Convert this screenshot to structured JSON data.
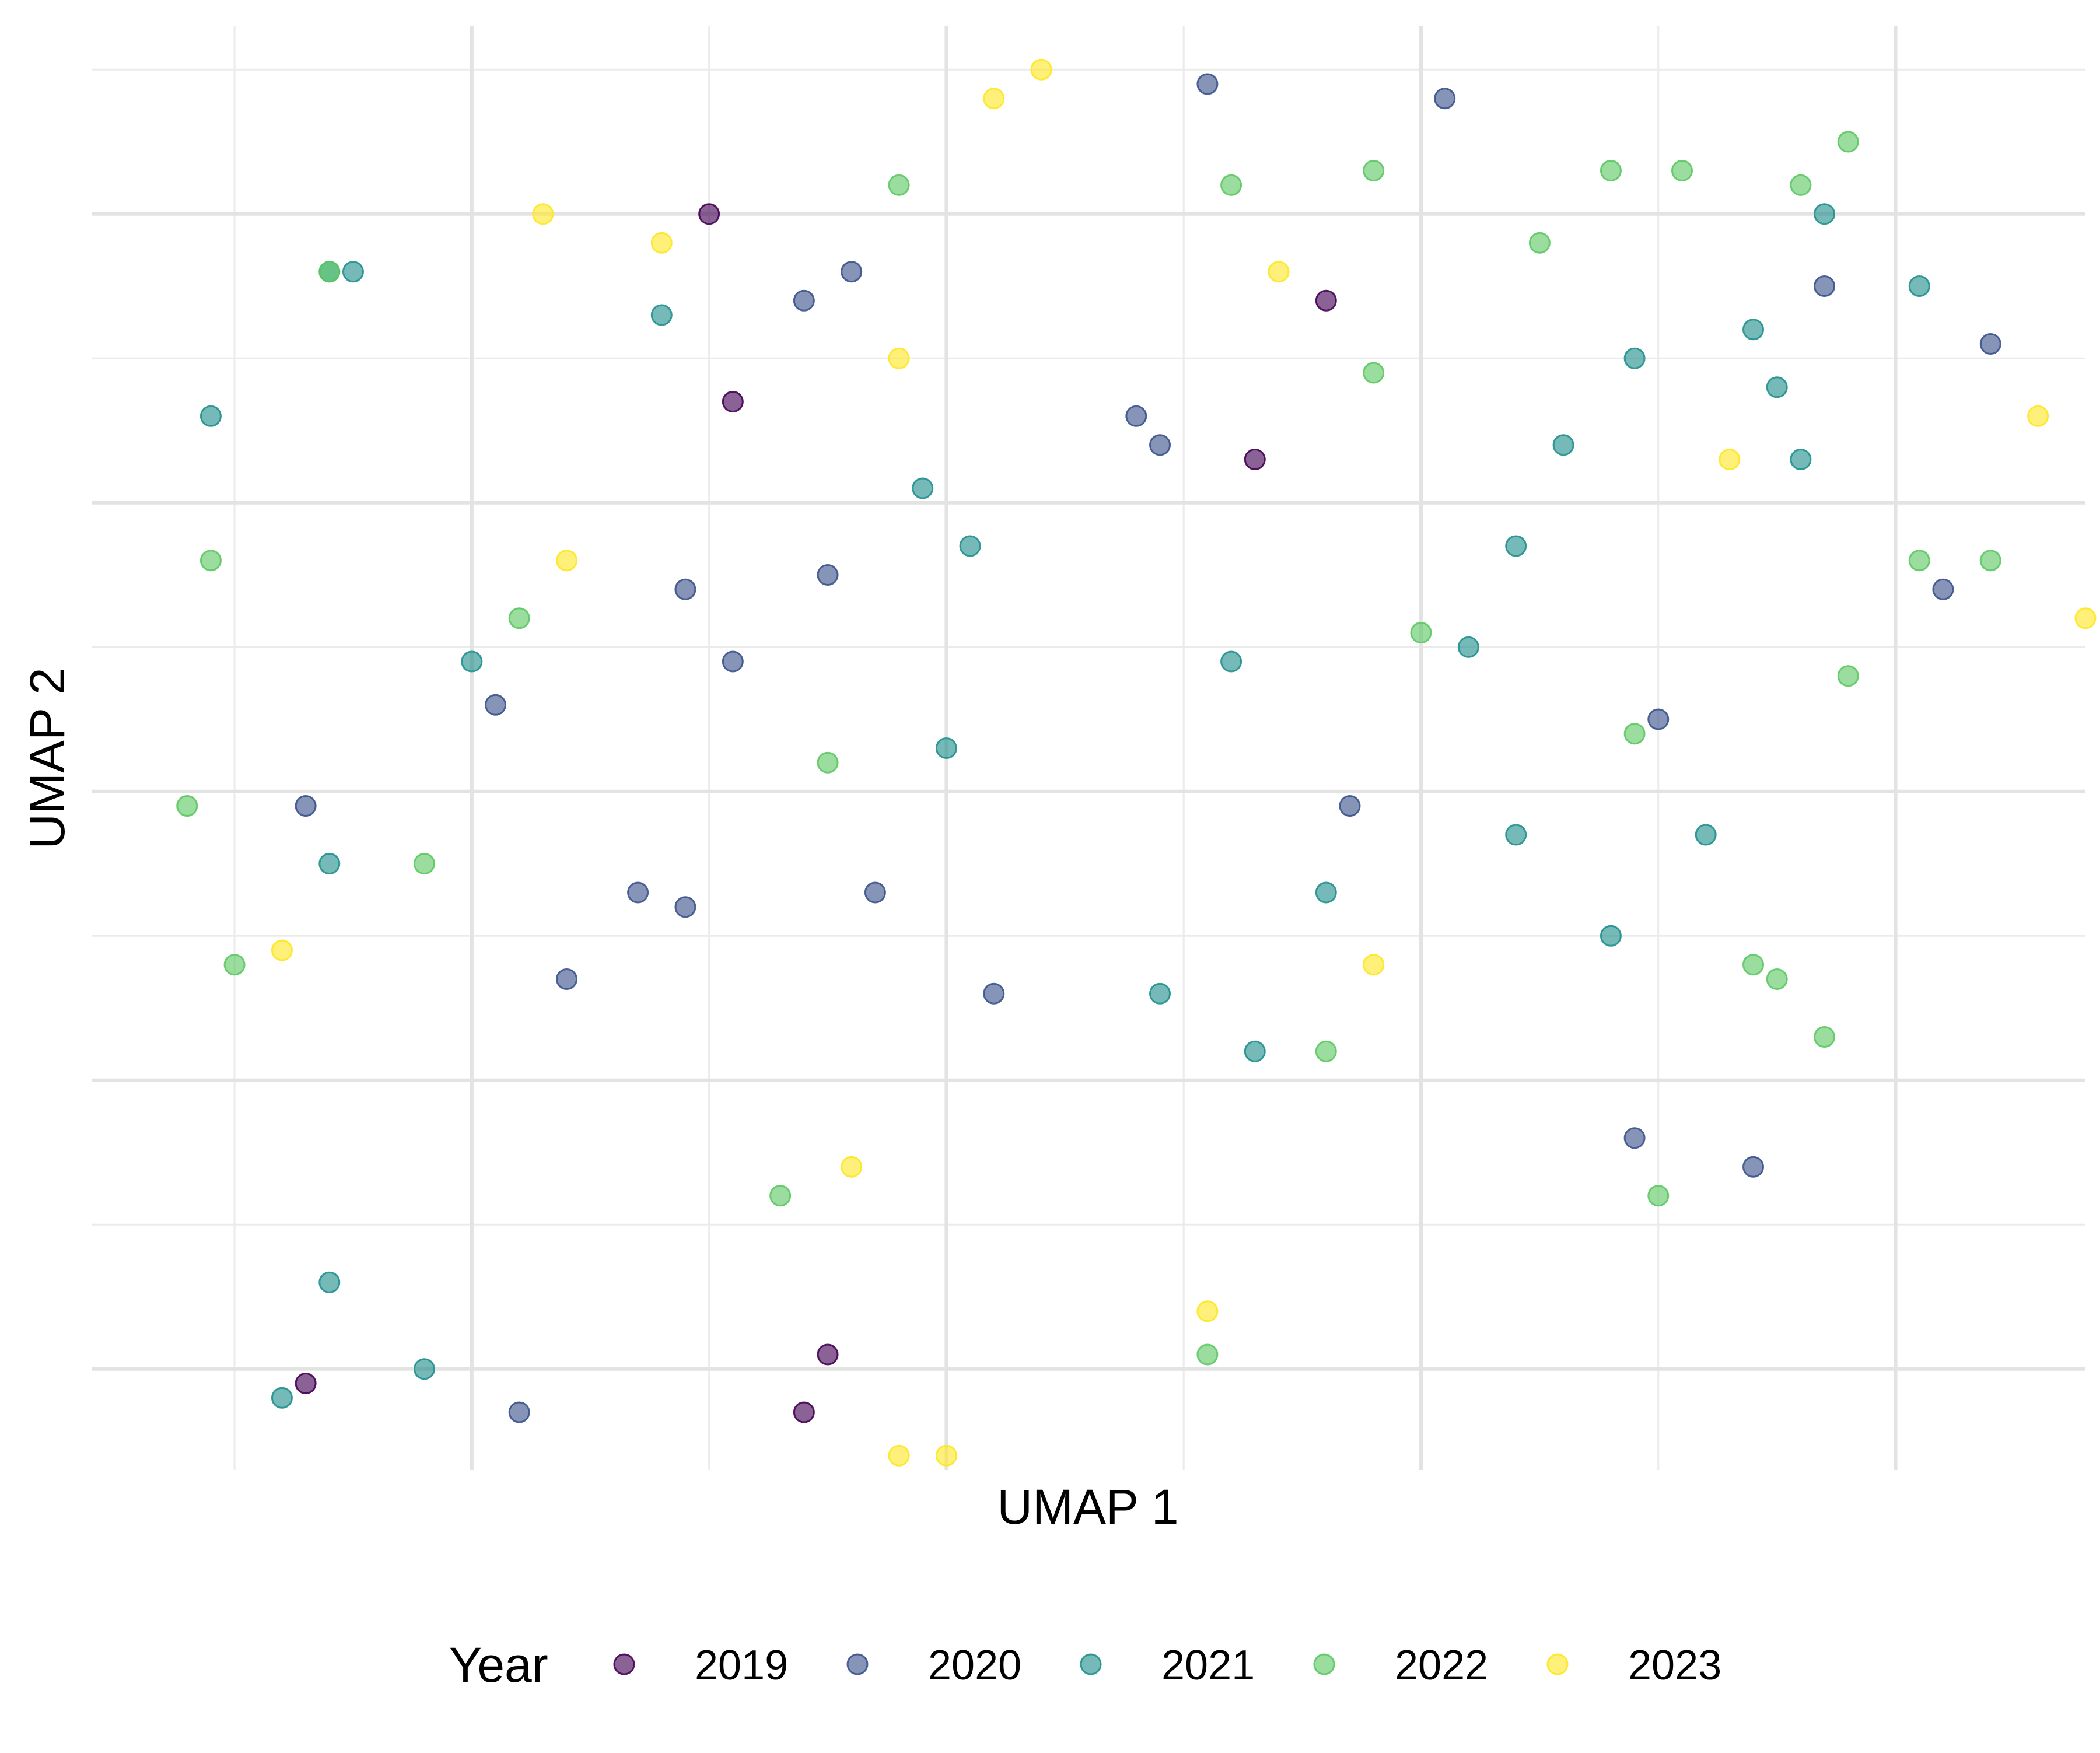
{
  "chart_data": {
    "type": "scatter",
    "title": "",
    "xlabel": "UMAP 1",
    "ylabel": "UMAP 2",
    "xlim": [
      -4.6,
      3.8
    ],
    "ylim": [
      -4.7,
      5.3
    ],
    "grid": true,
    "x_tick_labels_shown": false,
    "y_tick_labels_shown": false,
    "legend": {
      "title": "Year",
      "placement": "bottom"
    },
    "series": [
      {
        "name": "2019",
        "color": "#440154",
        "points": [
          [
            -2.0,
            4.0
          ],
          [
            0.6,
            3.4
          ],
          [
            -1.9,
            2.7
          ],
          [
            0.3,
            2.3
          ],
          [
            -1.5,
            -3.9
          ],
          [
            -3.7,
            -4.1
          ],
          [
            -1.6,
            -4.3
          ]
        ]
      },
      {
        "name": "2020",
        "color": "#3B528B",
        "points": [
          [
            0.1,
            4.9
          ],
          [
            1.1,
            4.8
          ],
          [
            -1.4,
            3.6
          ],
          [
            -1.6,
            3.4
          ],
          [
            2.7,
            3.5
          ],
          [
            3.4,
            3.1
          ],
          [
            -0.2,
            2.6
          ],
          [
            -0.1,
            2.4
          ],
          [
            3.2,
            1.4
          ],
          [
            -1.5,
            1.5
          ],
          [
            -2.1,
            1.4
          ],
          [
            -1.9,
            0.9
          ],
          [
            -2.9,
            0.6
          ],
          [
            2.0,
            0.5
          ],
          [
            -3.7,
            -0.1
          ],
          [
            0.7,
            -0.1
          ],
          [
            -1.3,
            -0.7
          ],
          [
            -2.1,
            -0.8
          ],
          [
            -2.3,
            -0.7
          ],
          [
            -2.6,
            -1.3
          ],
          [
            -0.8,
            -1.4
          ],
          [
            1.9,
            -2.4
          ],
          [
            2.4,
            -2.6
          ],
          [
            -2.8,
            -4.3
          ]
        ]
      },
      {
        "name": "2021",
        "color": "#21908C",
        "points": [
          [
            2.7,
            4.0
          ],
          [
            -3.5,
            3.6
          ],
          [
            -3.6,
            3.6
          ],
          [
            3.1,
            3.5
          ],
          [
            -2.2,
            3.3
          ],
          [
            2.4,
            3.2
          ],
          [
            -4.1,
            2.6
          ],
          [
            1.9,
            3.0
          ],
          [
            2.5,
            2.8
          ],
          [
            1.6,
            2.4
          ],
          [
            -1.1,
            2.1
          ],
          [
            2.6,
            2.3
          ],
          [
            -0.9,
            1.7
          ],
          [
            1.4,
            1.7
          ],
          [
            -3.0,
            0.9
          ],
          [
            0.2,
            0.9
          ],
          [
            1.2,
            1.0
          ],
          [
            -1.0,
            0.3
          ],
          [
            -3.6,
            -0.5
          ],
          [
            1.4,
            -0.3
          ],
          [
            2.2,
            -0.3
          ],
          [
            0.6,
            -0.7
          ],
          [
            1.8,
            -1.0
          ],
          [
            -0.1,
            -1.4
          ],
          [
            0.3,
            -1.8
          ],
          [
            -3.6,
            -3.4
          ],
          [
            -3.2,
            -4.0
          ],
          [
            -3.8,
            -4.2
          ]
        ]
      },
      {
        "name": "2022",
        "color": "#5DC863",
        "points": [
          [
            2.8,
            4.5
          ],
          [
            -1.2,
            4.2
          ],
          [
            0.2,
            4.2
          ],
          [
            0.8,
            4.3
          ],
          [
            1.8,
            4.3
          ],
          [
            2.1,
            4.3
          ],
          [
            2.6,
            4.2
          ],
          [
            1.5,
            3.8
          ],
          [
            -3.6,
            3.6
          ],
          [
            0.8,
            2.9
          ],
          [
            -4.1,
            1.6
          ],
          [
            3.1,
            1.6
          ],
          [
            3.4,
            1.6
          ],
          [
            -2.8,
            1.2
          ],
          [
            1.0,
            1.1
          ],
          [
            2.8,
            0.8
          ],
          [
            1.9,
            0.4
          ],
          [
            -1.5,
            0.2
          ],
          [
            -4.2,
            -0.1
          ],
          [
            -3.2,
            -0.5
          ],
          [
            -4.0,
            -1.2
          ],
          [
            2.4,
            -1.2
          ],
          [
            2.5,
            -1.3
          ],
          [
            2.7,
            -1.7
          ],
          [
            0.6,
            -1.8
          ],
          [
            -1.7,
            -2.8
          ],
          [
            2.0,
            -2.8
          ],
          [
            0.1,
            -3.9
          ]
        ]
      },
      {
        "name": "2023",
        "color": "#FDE725",
        "points": [
          [
            -0.6,
            5.0
          ],
          [
            -0.8,
            4.8
          ],
          [
            -2.7,
            4.0
          ],
          [
            -2.2,
            3.8
          ],
          [
            0.4,
            3.6
          ],
          [
            -1.2,
            3.0
          ],
          [
            3.6,
            2.6
          ],
          [
            2.3,
            2.3
          ],
          [
            -2.6,
            1.6
          ],
          [
            3.8,
            1.2
          ],
          [
            -3.8,
            -1.1
          ],
          [
            0.8,
            -1.2
          ],
          [
            -1.4,
            -2.6
          ],
          [
            0.1,
            -3.6
          ],
          [
            -1.0,
            -4.6
          ],
          [
            -1.2,
            -4.6
          ]
        ]
      }
    ]
  }
}
